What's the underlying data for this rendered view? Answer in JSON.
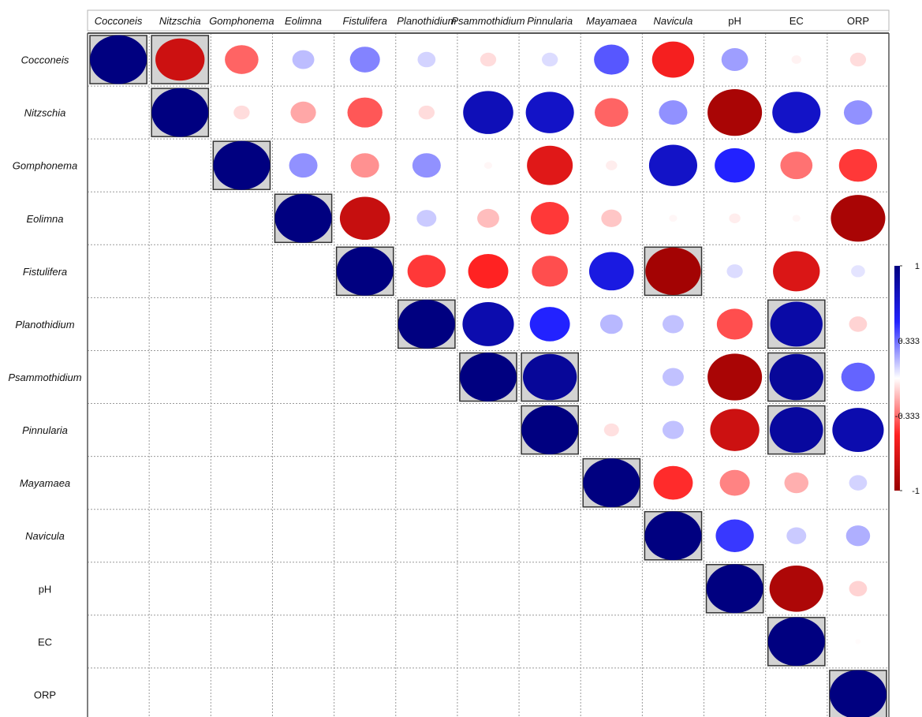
{
  "chart_data": {
    "type": "heatmap",
    "variables": [
      "Cocconeis",
      "Nitzschia",
      "Gomphonema",
      "Eolimna",
      "Fistulifera",
      "Planothidium",
      "Psammothidium",
      "Pinnularia",
      "Mayamaea",
      "Navicula",
      "pH",
      "EC",
      "ORP"
    ],
    "italic_variables": [
      "Cocconeis",
      "Nitzschia",
      "Gomphonema",
      "Eolimna",
      "Fistulifera",
      "Planothidium",
      "Psammothidium",
      "Pinnularia",
      "Mayamaea",
      "Navicula"
    ],
    "matrix_shape": "upper-triangular",
    "values": [
      [
        1.0,
        -0.75,
        -0.35,
        0.15,
        0.28,
        0.1,
        -0.08,
        0.08,
        0.38,
        -0.55,
        0.22,
        -0.03,
        -0.08
      ],
      [
        null,
        1.0,
        -0.08,
        -0.2,
        -0.38,
        -0.08,
        0.78,
        0.72,
        -0.35,
        0.25,
        -0.92,
        0.72,
        0.25
      ],
      [
        null,
        null,
        1.0,
        0.25,
        -0.25,
        0.25,
        -0.02,
        -0.65,
        -0.04,
        0.72,
        0.5,
        -0.32,
        -0.45
      ],
      [
        null,
        null,
        null,
        1.0,
        -0.78,
        0.12,
        -0.15,
        -0.45,
        -0.13,
        -0.02,
        -0.04,
        -0.02,
        -0.92
      ],
      [
        null,
        null,
        null,
        null,
        1.0,
        -0.45,
        -0.5,
        -0.4,
        0.62,
        -0.95,
        0.08,
        -0.68,
        0.06
      ],
      [
        null,
        null,
        null,
        null,
        null,
        1.0,
        0.82,
        0.5,
        0.16,
        0.14,
        -0.4,
        0.85,
        -0.1
      ],
      [
        null,
        null,
        null,
        null,
        null,
        null,
        1.0,
        0.9,
        null,
        0.14,
        -0.92,
        0.9,
        0.35
      ],
      [
        null,
        null,
        null,
        null,
        null,
        null,
        null,
        1.0,
        -0.07,
        0.14,
        -0.75,
        0.88,
        0.82
      ],
      [
        null,
        null,
        null,
        null,
        null,
        null,
        null,
        null,
        1.0,
        -0.48,
        -0.28,
        -0.18,
        0.1
      ],
      [
        null,
        null,
        null,
        null,
        null,
        null,
        null,
        null,
        null,
        1.0,
        0.45,
        0.12,
        0.18
      ],
      [
        null,
        null,
        null,
        null,
        null,
        null,
        null,
        null,
        null,
        null,
        1.0,
        -0.9,
        -0.1
      ],
      [
        null,
        null,
        null,
        null,
        null,
        null,
        null,
        null,
        null,
        null,
        null,
        1.0,
        -0.01
      ],
      [
        null,
        null,
        null,
        null,
        null,
        null,
        null,
        null,
        null,
        null,
        null,
        null,
        1.0
      ]
    ],
    "significant_cells": [
      [
        0,
        0
      ],
      [
        0,
        1
      ],
      [
        1,
        1
      ],
      [
        2,
        2
      ],
      [
        3,
        3
      ],
      [
        4,
        4
      ],
      [
        4,
        9
      ],
      [
        5,
        5
      ],
      [
        5,
        11
      ],
      [
        6,
        6
      ],
      [
        6,
        7
      ],
      [
        6,
        11
      ],
      [
        7,
        7
      ],
      [
        7,
        11
      ],
      [
        8,
        8
      ],
      [
        9,
        9
      ],
      [
        10,
        10
      ],
      [
        11,
        11
      ],
      [
        12,
        12
      ]
    ],
    "color_scale": {
      "min": -1,
      "max": 1,
      "colors": [
        "#990000",
        "#ff2222",
        "#ffffff",
        "#2222ff",
        "#000080"
      ],
      "tick_values": [
        1,
        0.333,
        -0.333,
        -1
      ],
      "tick_labels": [
        "1",
        "0.333",
        "-0.333",
        "-1"
      ]
    },
    "highlight_fill": "#d3d3d3",
    "grid": true,
    "legend_position": "right"
  }
}
